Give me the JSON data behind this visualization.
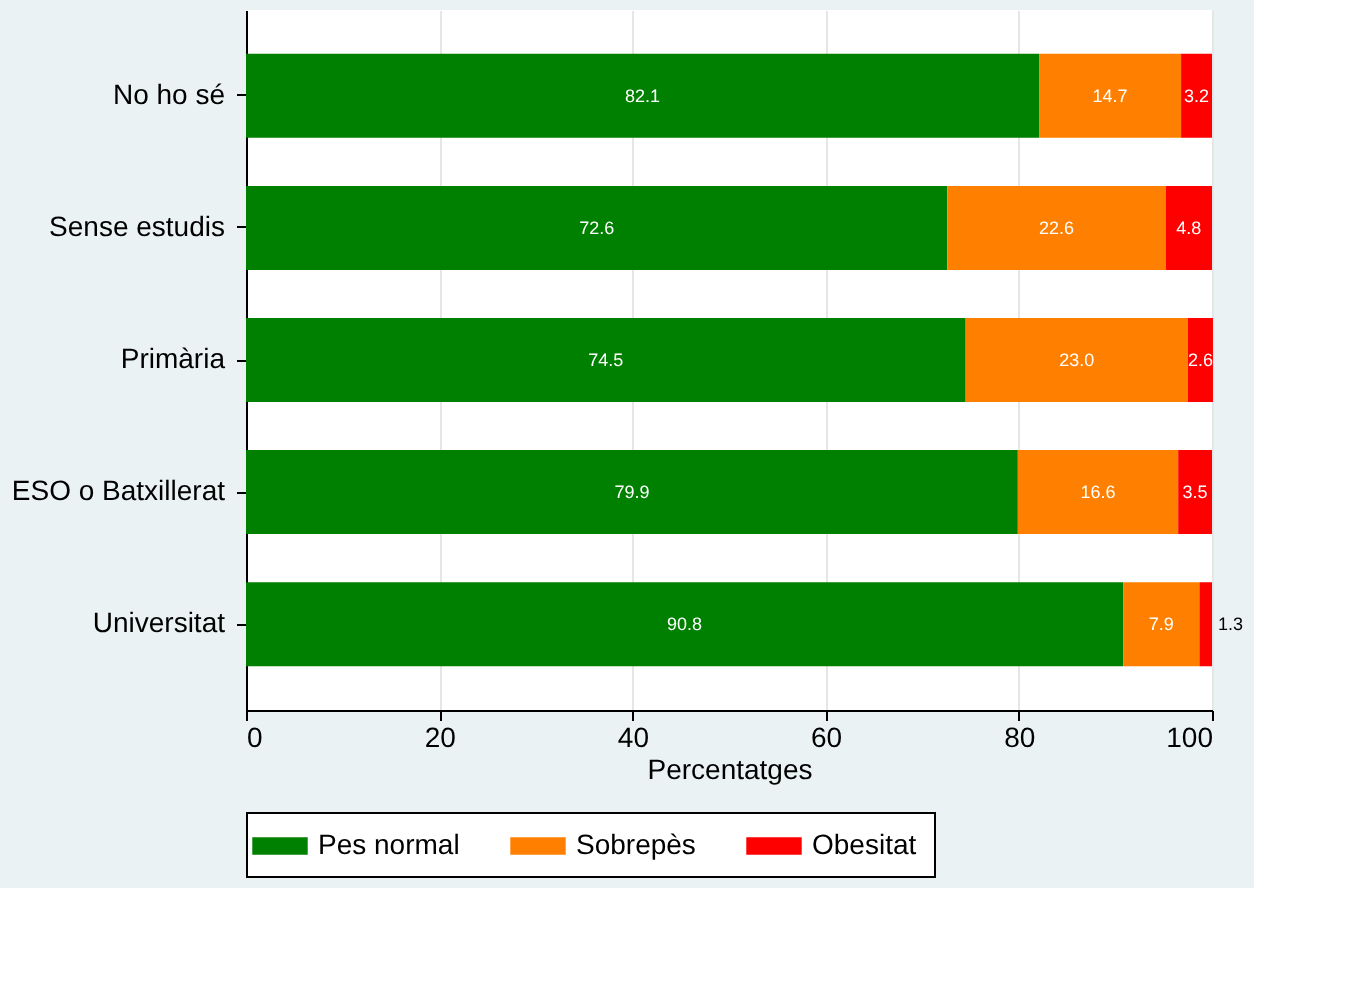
{
  "chart_data": {
    "type": "bar",
    "orientation": "horizontal",
    "stacked": true,
    "xlabel": "Percentatges",
    "categories": [
      "No ho sé",
      "Sense estudis",
      "Primària",
      "ESO o Batxillerat",
      "Universitat"
    ],
    "series": [
      {
        "name": "Pes normal",
        "color": "#008000",
        "values": [
          82.1,
          72.6,
          74.5,
          79.9,
          90.8
        ],
        "value_labels": [
          "82.1",
          "72.6",
          "74.5",
          "79.9",
          "90.8"
        ]
      },
      {
        "name": "Sobrepès",
        "color": "#ff8000",
        "values": [
          14.7,
          22.6,
          23.0,
          16.6,
          7.9
        ],
        "value_labels": [
          "14.7",
          "22.6",
          "23.0",
          "16.6",
          "7.9"
        ]
      },
      {
        "name": "Obesitat",
        "color": "#ff0000",
        "values": [
          3.2,
          4.8,
          2.6,
          3.5,
          1.3
        ],
        "value_labels": [
          "3.2",
          "4.8",
          "2.6",
          "3.5",
          "1.3"
        ]
      }
    ],
    "xlim": [
      0,
      100
    ],
    "xticks": [
      0,
      20,
      40,
      60,
      80,
      100
    ],
    "grid": "x",
    "legend": "bottom"
  }
}
